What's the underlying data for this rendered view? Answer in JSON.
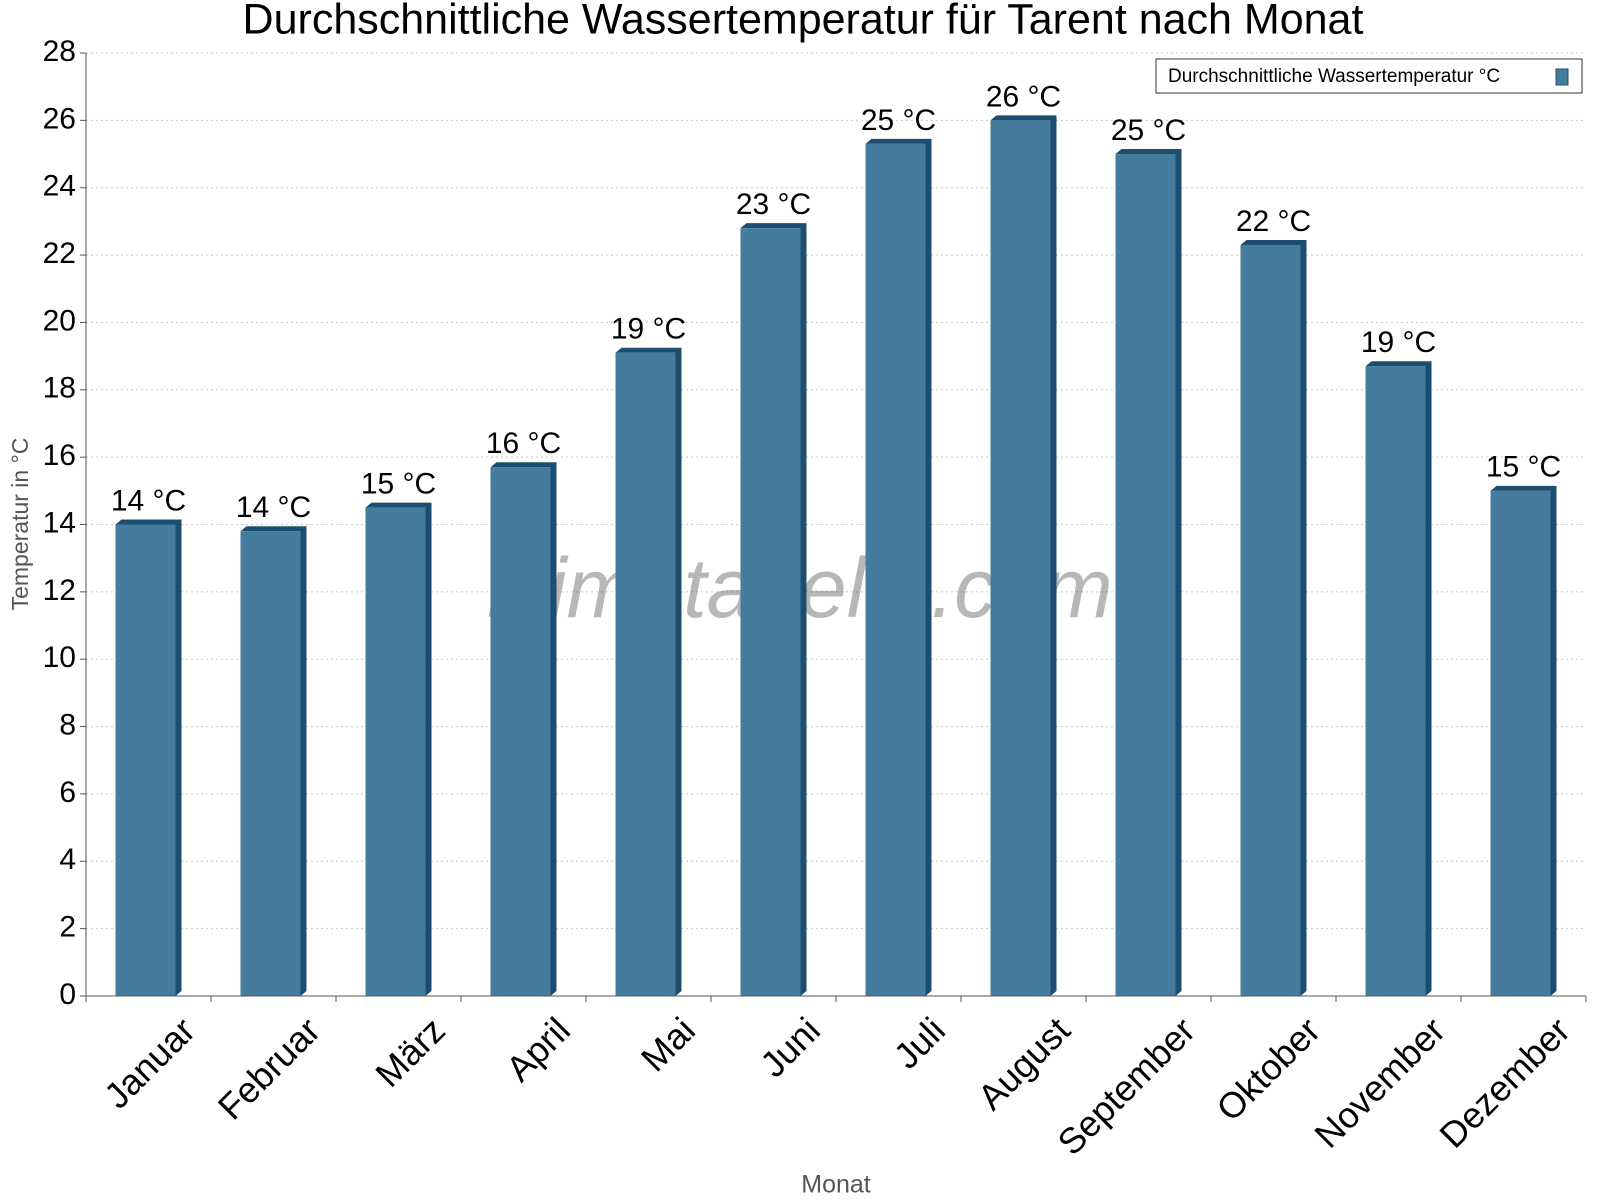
{
  "chart_data": {
    "type": "bar",
    "title": "Durchschnittliche Wassertemperatur für Tarent nach Monat",
    "x_label": "Monat",
    "y_label": "Temperatur in °C",
    "watermark": "klimatabelle.com",
    "categories": [
      "Januar",
      "Februar",
      "März",
      "April",
      "Mai",
      "Juni",
      "Juli",
      "August",
      "September",
      "Oktober",
      "November",
      "Dezember"
    ],
    "series": [
      {
        "name": "Durchschnittliche Wassertemperatur °C",
        "color": "#457b9d",
        "values": [
          14.0,
          13.8,
          14.5,
          15.7,
          19.1,
          22.8,
          25.3,
          26.0,
          25.0,
          22.3,
          18.7,
          15.0
        ],
        "value_labels": [
          "14 °C",
          "14 °C",
          "15 °C",
          "16 °C",
          "19 °C",
          "23 °C",
          "25 °C",
          "26 °C",
          "25 °C",
          "22 °C",
          "19 °C",
          "15 °C"
        ]
      }
    ],
    "ylim": [
      0,
      28
    ],
    "yticks": [
      0,
      2,
      4,
      6,
      8,
      10,
      12,
      14,
      16,
      18,
      20,
      22,
      24,
      26,
      28
    ],
    "grid": true,
    "legend": "top-right"
  }
}
